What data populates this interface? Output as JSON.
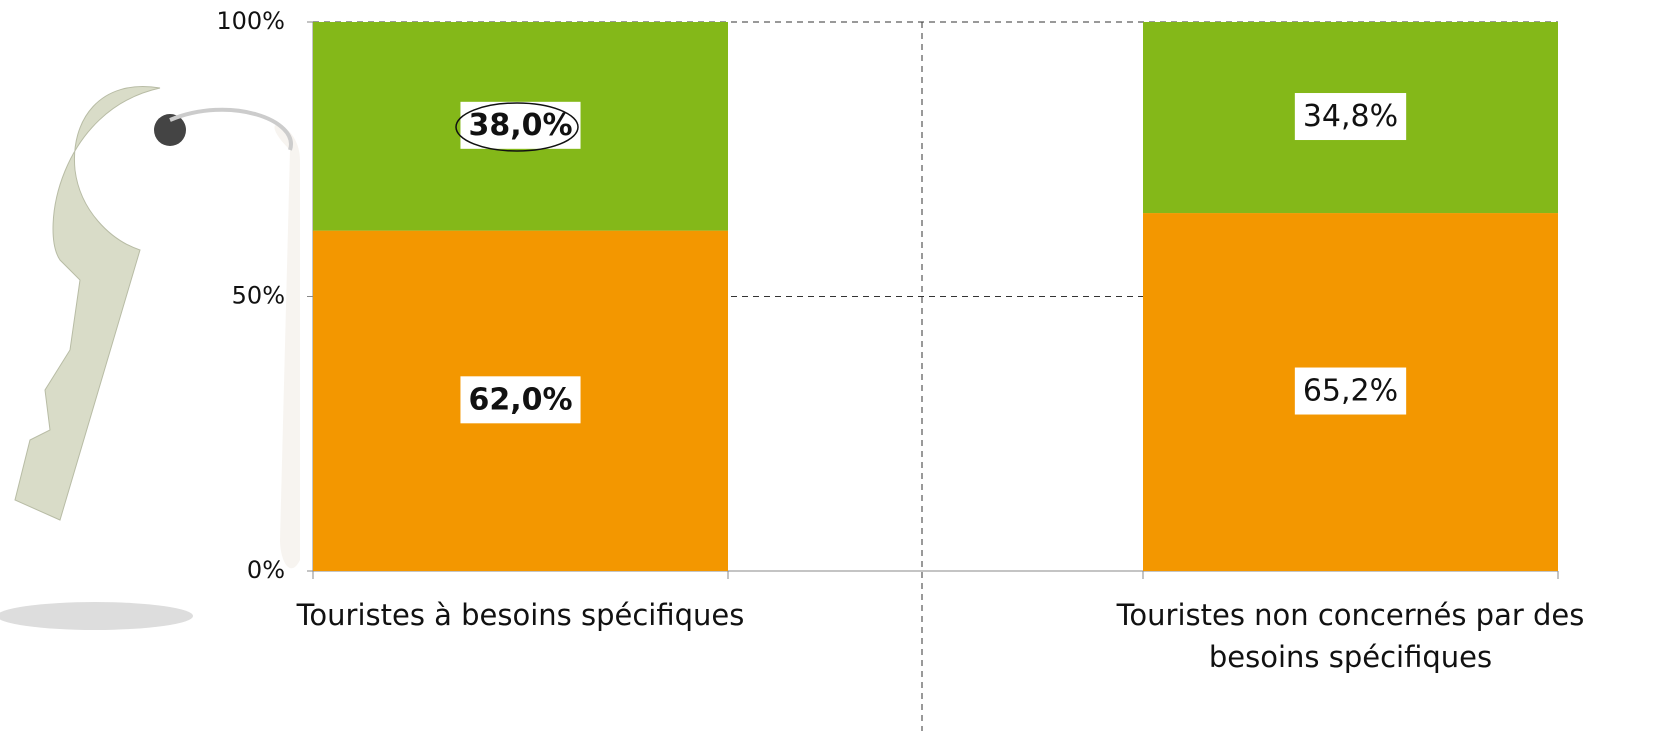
{
  "chart_data": {
    "type": "stacked_bar",
    "categories": [
      "Touristes à besoins spécifiques",
      null,
      "Touristes non concernés par des besoins spécifiques"
    ],
    "series": [
      {
        "color": "#f39700",
        "values": [
          62.0,
          null,
          65.2
        ],
        "value_labels": [
          "62,0%",
          null,
          "65,2%"
        ]
      },
      {
        "color": "#84b819",
        "values": [
          38.0,
          null,
          34.8
        ],
        "value_labels": [
          "38,0%",
          null,
          "34,8%"
        ]
      }
    ],
    "ylim": [
      0,
      100
    ],
    "yticks": [
      {
        "value": 0,
        "label": "0%"
      },
      {
        "value": 50,
        "label": "50%"
      },
      {
        "value": 100,
        "label": "100%"
      }
    ],
    "grid": true
  }
}
